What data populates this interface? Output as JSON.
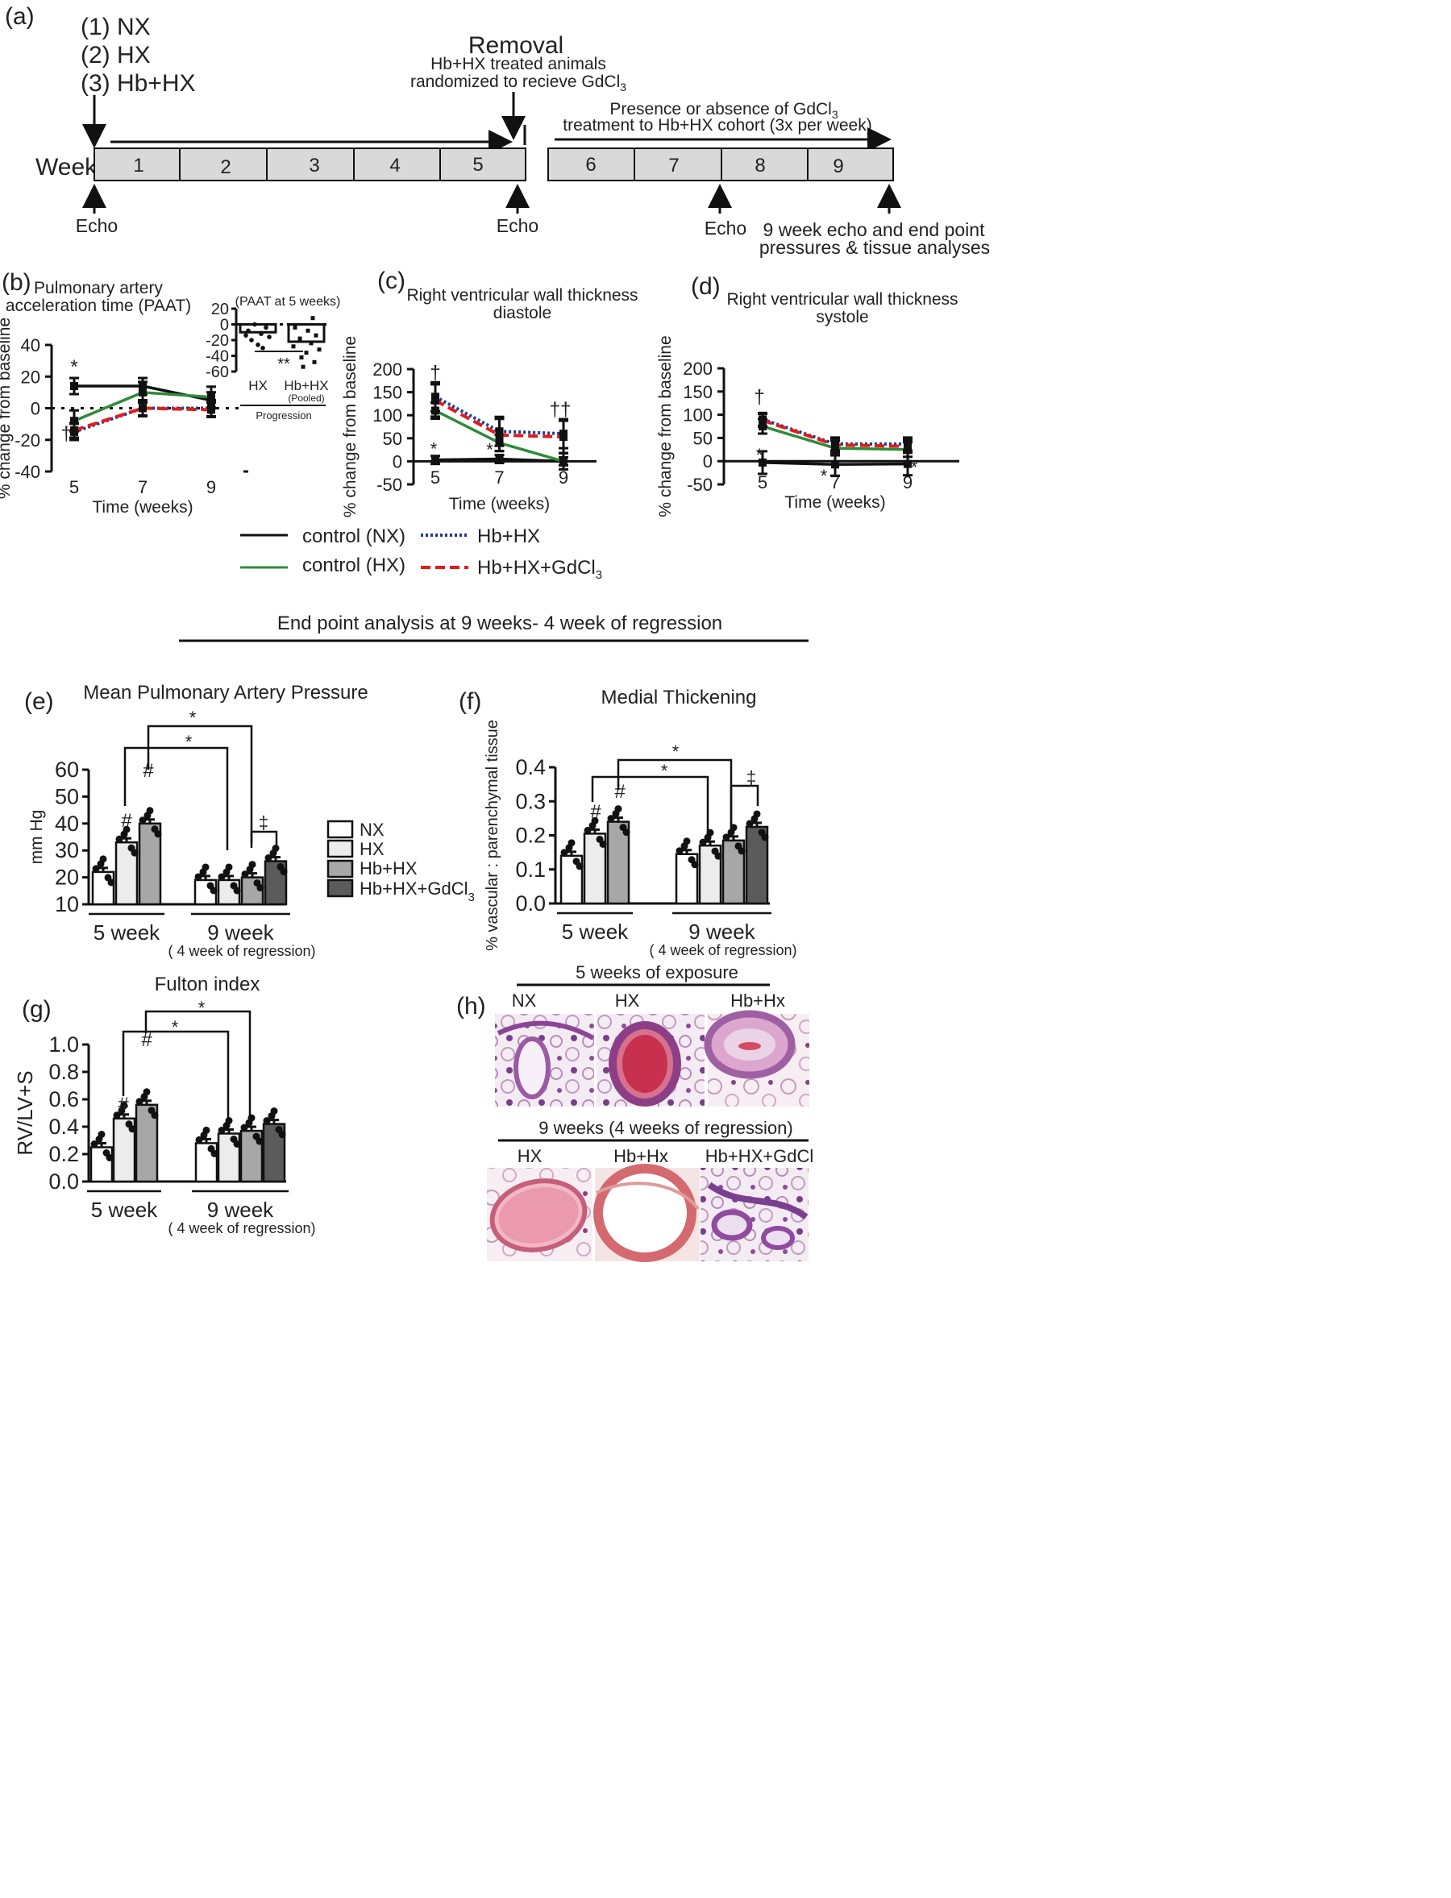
{
  "panel_labels": {
    "a": "(a)",
    "b": "(b)",
    "c": "(c)",
    "d": "(d)",
    "e": "(e)",
    "f": "(f)",
    "g": "(g)",
    "h": "(h)"
  },
  "timeline": {
    "groups": [
      "(1) NX",
      "(2) HX",
      "(3) Hb+HX"
    ],
    "removal_title": "Removal",
    "removal_sub1": "Hb+HX treated animals",
    "removal_sub2": "randomized to recieve GdCl",
    "removal_sub2_sub": "3",
    "presence_line1": "Presence or absence of GdCl",
    "presence_line1_sub": "3",
    "presence_line2": "treatment to Hb+HX cohort (3x per week)",
    "week_label": "Week",
    "weeks": [
      "1",
      "2",
      "3",
      "4",
      "5",
      "6",
      "7",
      "8",
      "9"
    ],
    "echo": "Echo",
    "end_line1": "9 week echo and end point",
    "end_line2": "pressures & tissue analyses"
  },
  "legend_lines": {
    "nx": "control (NX)",
    "hx": "control (HX)",
    "hbhx": "Hb+HX",
    "gd_prefix": "Hb+HX+GdCl",
    "gd_sub": "3",
    "colors": {
      "nx": "#111111",
      "hx": "#2e8b3a",
      "hbhx": "#1f3a93",
      "gd": "#e31b1b"
    }
  },
  "section_title": "End point analysis at 9 weeks-   4 week of regression",
  "bar_legend": {
    "items": [
      "NX",
      "HX",
      "Hb+HX",
      "Hb+HX+GdCl"
    ],
    "gd_sub": "3",
    "fills": [
      "#ffffff",
      "#ececec",
      "#a7a7a7",
      "#5b5b5b"
    ]
  },
  "common": {
    "ylabel_pct": "% change from baseline",
    "xlabel_time": "Time (weeks)",
    "group_5": "5 week",
    "group_9": "9 week",
    "group_9_sub": "( 4 week of regression)",
    "star": "*",
    "hash": "#",
    "dagger": "†",
    "ddagger": "‡",
    "dstar": "**",
    "ddag": "††"
  },
  "histology": {
    "top_title": "5 weeks of exposure",
    "top_labels": [
      "NX",
      "HX",
      "Hb+Hx"
    ],
    "bottom_title": "9 weeks (4 weeks of regression)",
    "bottom_labels": [
      "HX",
      "Hb+Hx",
      "Hb+HX+GdCl"
    ]
  },
  "chart_data": [
    {
      "panel": "b",
      "type": "line",
      "title": "Pulmonary artery\nacceleration time (PAAT)",
      "xlabel": "Time (weeks)",
      "ylabel": "% change from baseline",
      "x": [
        5,
        7,
        9
      ],
      "ylim": [
        -40,
        40
      ],
      "yticks": [
        -40,
        -20,
        0,
        20,
        40
      ],
      "series": [
        {
          "name": "control (NX)",
          "values": [
            14,
            14,
            5
          ]
        },
        {
          "name": "control (HX)",
          "values": [
            -8,
            10,
            7
          ]
        },
        {
          "name": "Hb+HX",
          "values": [
            -15,
            0,
            0
          ]
        },
        {
          "name": "Hb+HX+GdCl3",
          "values": [
            -14,
            0,
            -1
          ]
        }
      ],
      "inset": {
        "title": "(PAAT at 5 weeks)",
        "type": "bar",
        "categories": [
          "HX",
          "Hb+HX"
        ],
        "category_subs": [
          "",
          "(Pooled)"
        ],
        "values": [
          -10,
          -22
        ],
        "ylim": [
          -60,
          20
        ],
        "yticks": [
          -60,
          -40,
          -20,
          0,
          20
        ],
        "xlabel": "Progression"
      }
    },
    {
      "panel": "c",
      "type": "line",
      "title": "Right ventricular wall thickness\ndiastole",
      "xlabel": "Time (weeks)",
      "ylabel": "% change from baseline",
      "x": [
        5,
        7,
        9
      ],
      "ylim": [
        -50,
        200
      ],
      "yticks": [
        -50,
        0,
        50,
        100,
        150,
        200
      ],
      "series": [
        {
          "name": "control (NX)",
          "values": [
            3,
            5,
            0
          ]
        },
        {
          "name": "control (HX)",
          "values": [
            110,
            40,
            0
          ]
        },
        {
          "name": "Hb+HX",
          "values": [
            140,
            65,
            60
          ]
        },
        {
          "name": "Hb+HX+GdCl3",
          "values": [
            132,
            57,
            53
          ]
        }
      ]
    },
    {
      "panel": "d",
      "type": "line",
      "title": "Right ventricular wall thickness\nsystole",
      "xlabel": "Time (weeks)",
      "ylabel": "% change from baseline",
      "x": [
        5,
        7,
        9
      ],
      "ylim": [
        -50,
        200
      ],
      "yticks": [
        -50,
        0,
        50,
        100,
        150,
        200
      ],
      "series": [
        {
          "name": "control (NX)",
          "values": [
            -3,
            -7,
            -6
          ]
        },
        {
          "name": "control (HX)",
          "values": [
            75,
            28,
            25
          ]
        },
        {
          "name": "Hb+HX",
          "values": [
            90,
            37,
            37
          ]
        },
        {
          "name": "Hb+HX+GdCl3",
          "values": [
            88,
            35,
            32
          ]
        }
      ]
    },
    {
      "panel": "e",
      "type": "bar",
      "title": "Mean Pulmonary Artery Pressure",
      "ylabel": "mm Hg",
      "ylim": [
        10,
        60
      ],
      "yticks": [
        10,
        20,
        30,
        40,
        50,
        60
      ],
      "categories": [
        "5 week",
        "9 week"
      ],
      "series": [
        {
          "name": "NX",
          "values": [
            22,
            19
          ]
        },
        {
          "name": "HX",
          "values": [
            33,
            19
          ]
        },
        {
          "name": "Hb+HX",
          "values": [
            40,
            20
          ]
        },
        {
          "name": "Hb+HX+GdCl3",
          "values": [
            null,
            26
          ]
        }
      ]
    },
    {
      "panel": "f",
      "type": "bar",
      "title": "Medial Thickening",
      "ylabel": "% vascular : parenchymal tissue",
      "ylim": [
        0,
        0.4
      ],
      "yticks": [
        0.0,
        0.1,
        0.2,
        0.3,
        0.4
      ],
      "categories": [
        "5 week",
        "9 week"
      ],
      "series": [
        {
          "name": "NX",
          "values": [
            0.14,
            0.145
          ]
        },
        {
          "name": "HX",
          "values": [
            0.205,
            0.17
          ]
        },
        {
          "name": "Hb+HX",
          "values": [
            0.24,
            0.185
          ]
        },
        {
          "name": "Hb+HX+GdCl3",
          "values": [
            null,
            0.225
          ]
        }
      ]
    },
    {
      "panel": "g",
      "type": "bar",
      "title": "Fulton index",
      "ylabel": "RV/LV+S",
      "ylim": [
        0,
        1.0
      ],
      "yticks": [
        0.0,
        0.2,
        0.4,
        0.6,
        0.8,
        1.0
      ],
      "categories": [
        "5 week",
        "9 week"
      ],
      "series": [
        {
          "name": "NX",
          "values": [
            0.25,
            0.28
          ]
        },
        {
          "name": "HX",
          "values": [
            0.46,
            0.35
          ]
        },
        {
          "name": "Hb+HX",
          "values": [
            0.56,
            0.37
          ]
        },
        {
          "name": "Hb+HX+GdCl3",
          "values": [
            null,
            0.42
          ]
        }
      ]
    }
  ]
}
